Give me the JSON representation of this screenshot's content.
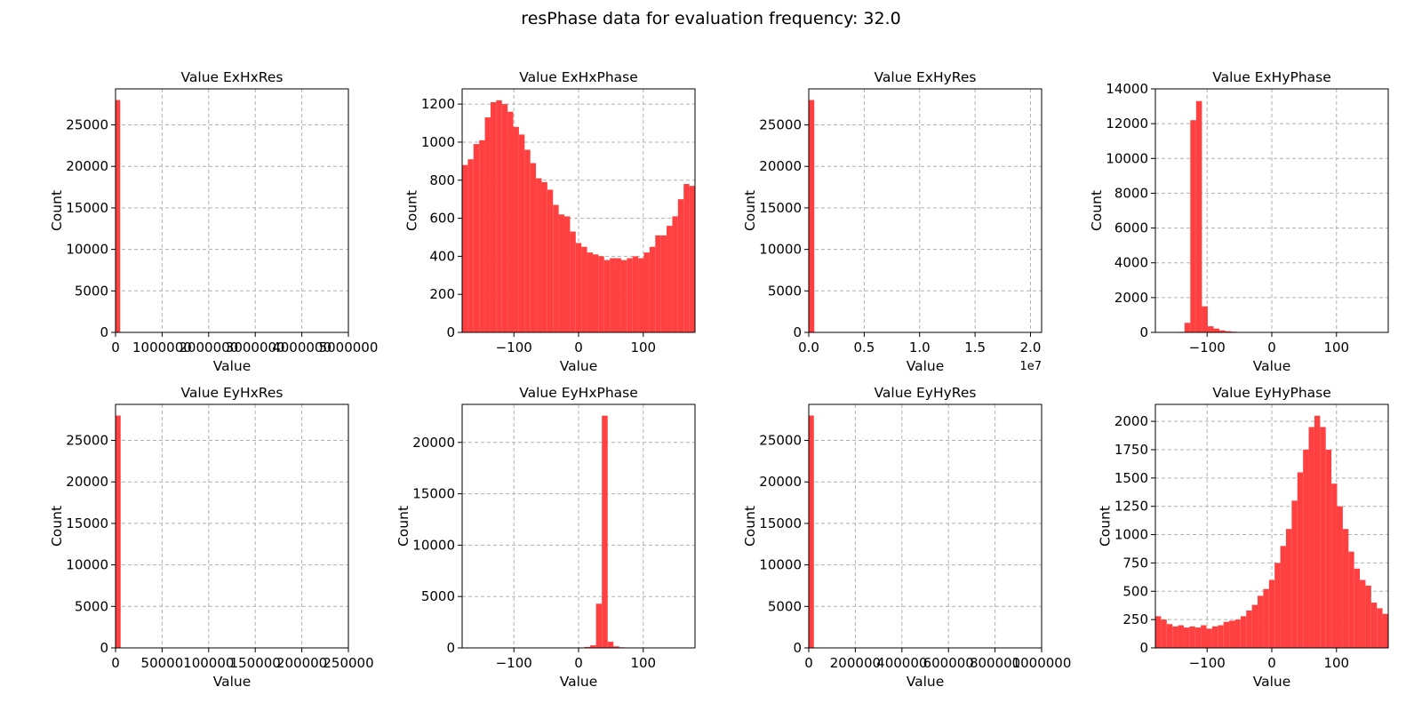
{
  "figure": {
    "title": "resPhase data for evaluation frequency: 32.0"
  },
  "style": {
    "bar_color": "#ff4040",
    "grid_color": "#b0b0b0"
  },
  "chart_data": [
    {
      "type": "bar",
      "title": "Value ExHxRes",
      "xlabel": "Value",
      "ylabel": "Count",
      "xlim": [
        0,
        5000000
      ],
      "ylim": [
        0,
        29340
      ],
      "xticks": [
        0,
        1000000,
        2000000,
        3000000,
        4000000,
        5000000
      ],
      "xtick_labels": [
        "0",
        "1000000",
        "2000000",
        "3000000",
        "4000000",
        "5000000"
      ],
      "yticks": [
        0,
        5000,
        10000,
        15000,
        20000,
        25000
      ],
      "xoffset": "",
      "grid": true,
      "bin_edges": [
        0,
        100000
      ],
      "counts": [
        28000
      ]
    },
    {
      "type": "bar",
      "title": "Value ExHxPhase",
      "xlabel": "Value",
      "ylabel": "Count",
      "xlim": [
        -180,
        180
      ],
      "ylim": [
        0,
        1280
      ],
      "xticks": [
        -100,
        0,
        100
      ],
      "xtick_labels": [
        "−100",
        "0",
        "100"
      ],
      "yticks": [
        0,
        200,
        400,
        600,
        800,
        1000,
        1200
      ],
      "xoffset": "",
      "grid": true,
      "bin_range": [
        -180,
        180
      ],
      "counts": [
        880,
        910,
        990,
        1010,
        1130,
        1210,
        1220,
        1200,
        1160,
        1080,
        1040,
        960,
        890,
        810,
        790,
        750,
        670,
        620,
        610,
        530,
        470,
        450,
        420,
        410,
        400,
        380,
        390,
        390,
        380,
        390,
        400,
        390,
        420,
        450,
        510,
        510,
        560,
        610,
        700,
        780,
        770
      ]
    },
    {
      "type": "bar",
      "title": "Value ExHyRes",
      "xlabel": "Value",
      "ylabel": "Count",
      "xlim": [
        0,
        2.1
      ],
      "ylim": [
        0,
        29340
      ],
      "xticks": [
        0,
        0.5,
        1.0,
        1.5,
        2.0
      ],
      "xtick_labels": [
        "0.0",
        "0.5",
        "1.0",
        "1.5",
        "2.0"
      ],
      "yticks": [
        0,
        5000,
        10000,
        15000,
        20000,
        25000
      ],
      "xoffset": "1e7",
      "grid": true,
      "bin_edges": [
        0,
        0.05
      ],
      "counts": [
        28000
      ]
    },
    {
      "type": "bar",
      "title": "Value ExHyPhase",
      "xlabel": "Value",
      "ylabel": "Count",
      "xlim": [
        -180,
        180
      ],
      "ylim": [
        0,
        14000
      ],
      "xticks": [
        -100,
        0,
        100
      ],
      "xtick_labels": [
        "−100",
        "0",
        "100"
      ],
      "yticks": [
        0,
        2000,
        4000,
        6000,
        8000,
        10000,
        12000,
        14000
      ],
      "xoffset": "",
      "grid": true,
      "bin_range": [
        -180,
        180
      ],
      "counts": [
        0,
        0,
        0,
        10,
        30,
        550,
        12200,
        13300,
        1500,
        350,
        220,
        120,
        70,
        40,
        20,
        10,
        5,
        0,
        0,
        0,
        0,
        0,
        0,
        0,
        0,
        0,
        0,
        0,
        0,
        0,
        0,
        0,
        0,
        0,
        0,
        0,
        0,
        0,
        0,
        0
      ]
    },
    {
      "type": "bar",
      "title": "Value EyHxRes",
      "xlabel": "Value",
      "ylabel": "Count",
      "xlim": [
        0,
        250000
      ],
      "ylim": [
        0,
        29340
      ],
      "xticks": [
        0,
        50000,
        100000,
        150000,
        200000,
        250000
      ],
      "xtick_labels": [
        "0",
        "50000",
        "100000",
        "150000",
        "200000",
        "250000"
      ],
      "yticks": [
        0,
        5000,
        10000,
        15000,
        20000,
        25000
      ],
      "xoffset": "",
      "grid": true,
      "bin_edges": [
        0,
        5500
      ],
      "counts": [
        28000
      ]
    },
    {
      "type": "bar",
      "title": "Value EyHxPhase",
      "xlabel": "Value",
      "ylabel": "Count",
      "xlim": [
        -180,
        180
      ],
      "ylim": [
        0,
        23700
      ],
      "xticks": [
        -100,
        0,
        100
      ],
      "xtick_labels": [
        "−100",
        "0",
        "100"
      ],
      "yticks": [
        0,
        5000,
        10000,
        15000,
        20000
      ],
      "xoffset": "",
      "grid": true,
      "bin_range": [
        -180,
        180
      ],
      "counts": [
        0,
        0,
        0,
        0,
        0,
        0,
        0,
        0,
        0,
        0,
        0,
        0,
        0,
        0,
        0,
        0,
        0,
        0,
        10,
        20,
        40,
        100,
        250,
        4300,
        22600,
        600,
        150,
        60,
        20,
        10,
        0,
        0,
        0,
        0,
        0,
        0,
        0,
        0,
        0,
        0
      ]
    },
    {
      "type": "bar",
      "title": "Value EyHyRes",
      "xlabel": "Value",
      "ylabel": "Count",
      "xlim": [
        0,
        1000000
      ],
      "ylim": [
        0,
        29340
      ],
      "xticks": [
        0,
        200000,
        400000,
        600000,
        800000,
        1000000
      ],
      "xtick_labels": [
        "0",
        "200000",
        "400000",
        "600000",
        "800000",
        "1000000"
      ],
      "yticks": [
        0,
        5000,
        10000,
        15000,
        20000,
        25000
      ],
      "xoffset": "",
      "grid": true,
      "bin_edges": [
        0,
        22000
      ],
      "counts": [
        28000
      ]
    },
    {
      "type": "bar",
      "title": "Value EyHyPhase",
      "xlabel": "Value",
      "ylabel": "Count",
      "xlim": [
        -180,
        180
      ],
      "ylim": [
        0,
        2150
      ],
      "xticks": [
        -100,
        0,
        100
      ],
      "xtick_labels": [
        "−100",
        "0",
        "100"
      ],
      "yticks": [
        0,
        250,
        500,
        750,
        1000,
        1250,
        1500,
        1750,
        2000
      ],
      "xoffset": "",
      "grid": true,
      "bin_range": [
        -180,
        180
      ],
      "counts": [
        280,
        250,
        210,
        190,
        200,
        180,
        190,
        180,
        200,
        170,
        190,
        200,
        230,
        240,
        250,
        280,
        330,
        380,
        460,
        520,
        600,
        750,
        900,
        1050,
        1300,
        1550,
        1750,
        1950,
        2050,
        1950,
        1750,
        1450,
        1250,
        1050,
        850,
        700,
        600,
        550,
        400,
        350,
        300
      ]
    }
  ]
}
